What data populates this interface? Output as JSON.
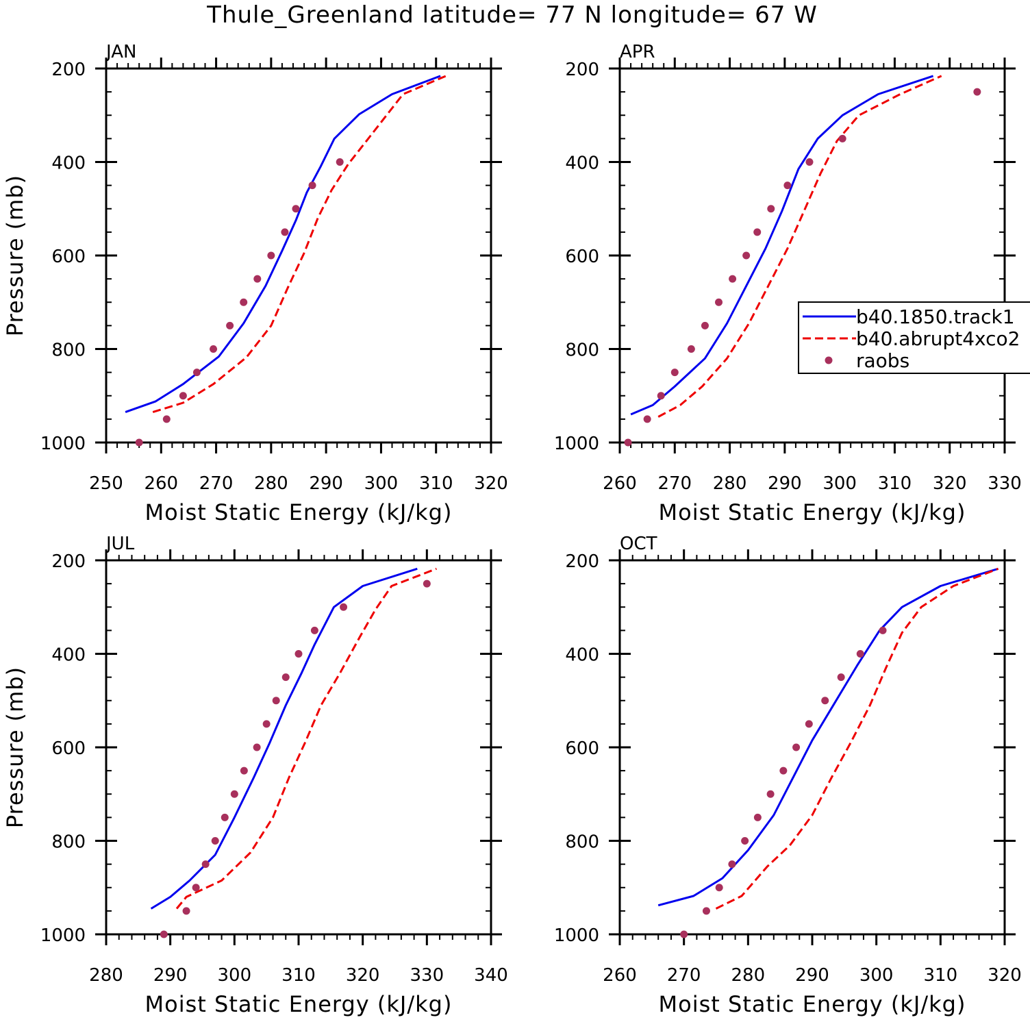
{
  "title": "Thule_Greenland  latitude= 77 N longitude= 67 W",
  "colors": {
    "model_a": "#0000ee",
    "model_b": "#ee0000",
    "raobs": "#a8305c"
  },
  "chart_data": [
    {
      "type": "line",
      "panel": "JAN",
      "xlabel": "Moist Static Energy (kJ/kg)",
      "ylabel": "Pressure (mb)",
      "xlim": [
        250,
        320
      ],
      "ylim": [
        200,
        1000
      ],
      "y_inverted": true,
      "xticks": [
        250,
        260,
        270,
        280,
        290,
        300,
        310,
        320
      ],
      "yticks": [
        200,
        400,
        600,
        800,
        1000
      ],
      "series": [
        {
          "name": "b40.1850.track1",
          "style": "solid",
          "x": [
            253.5,
            259,
            264,
            270.5,
            275,
            279,
            282,
            284.5,
            286.5,
            289,
            291.5,
            296,
            302,
            310.8
          ],
          "y": [
            935,
            912,
            875,
            816,
            745,
            665,
            590,
            525,
            465,
            410,
            350,
            298,
            255,
            216
          ]
        },
        {
          "name": "b40.abrupt4xco2",
          "style": "dashed",
          "x": [
            258.5,
            264,
            269.5,
            275.5,
            280,
            283,
            286,
            288.5,
            291,
            294,
            298,
            304,
            311.8
          ],
          "y": [
            935,
            915,
            875,
            818,
            750,
            670,
            595,
            520,
            460,
            405,
            345,
            255,
            216
          ]
        },
        {
          "name": "raobs",
          "style": "markers",
          "x": [
            256,
            261,
            264,
            266.5,
            269.5,
            272.5,
            275,
            277.5,
            280,
            282.5,
            284.5,
            287.5,
            292.5
          ],
          "y": [
            1000,
            950,
            900,
            850,
            800,
            750,
            700,
            650,
            600,
            550,
            500,
            450,
            400
          ]
        }
      ]
    },
    {
      "type": "line",
      "panel": "APR",
      "xlabel": "Moist Static Energy (kJ/kg)",
      "ylabel": "",
      "xlim": [
        260,
        330
      ],
      "ylim": [
        200,
        1000
      ],
      "y_inverted": true,
      "xticks": [
        260,
        270,
        280,
        290,
        300,
        310,
        320,
        330
      ],
      "yticks": [
        200,
        400,
        600,
        800,
        1000
      ],
      "series": [
        {
          "name": "b40.1850.track1",
          "style": "solid",
          "x": [
            262,
            266,
            270,
            275.5,
            279.5,
            283,
            286.5,
            289.5,
            292.5,
            296,
            300.5,
            307,
            317
          ],
          "y": [
            940,
            920,
            880,
            820,
            745,
            665,
            585,
            505,
            415,
            350,
            300,
            255,
            216
          ]
        },
        {
          "name": "b40.abrupt4xco2",
          "style": "dashed",
          "x": [
            267,
            271,
            275,
            279.5,
            283.5,
            287,
            290.5,
            293.5,
            296.5,
            299.5,
            303.5,
            311,
            318.5
          ],
          "y": [
            945,
            920,
            880,
            820,
            745,
            665,
            585,
            505,
            425,
            355,
            300,
            255,
            216
          ]
        },
        {
          "name": "raobs",
          "style": "markers",
          "x": [
            261.5,
            265,
            267.5,
            270,
            273,
            275.5,
            278,
            280.5,
            283,
            285,
            287.5,
            290.5,
            294.5,
            300.5,
            325
          ],
          "y": [
            1000,
            950,
            900,
            850,
            800,
            750,
            700,
            650,
            600,
            550,
            500,
            450,
            400,
            350,
            250
          ]
        }
      ],
      "legend": {
        "placement": "right",
        "entries": [
          "b40.1850.track1",
          "b40.abrupt4xco2",
          "raobs"
        ]
      }
    },
    {
      "type": "line",
      "panel": "JUL",
      "xlabel": "Moist Static Energy (kJ/kg)",
      "ylabel": "Pressure (mb)",
      "xlim": [
        280,
        340
      ],
      "ylim": [
        200,
        1000
      ],
      "y_inverted": true,
      "xticks": [
        280,
        290,
        300,
        310,
        320,
        330,
        340
      ],
      "yticks": [
        200,
        400,
        600,
        800,
        1000
      ],
      "series": [
        {
          "name": "b40.1850.track1",
          "style": "solid",
          "x": [
            287,
            290,
            293,
            297,
            300,
            303,
            305.5,
            308,
            310.5,
            312.5,
            315.5,
            320,
            328.5
          ],
          "y": [
            945,
            920,
            885,
            830,
            750,
            665,
            590,
            510,
            440,
            380,
            300,
            255,
            218
          ]
        },
        {
          "name": "b40.abrupt4xco2",
          "style": "dashed",
          "x": [
            291,
            292.5,
            298,
            302.5,
            306,
            308.5,
            311,
            313.5,
            316.5,
            319.5,
            322,
            324.5,
            331.5
          ],
          "y": [
            945,
            920,
            885,
            825,
            750,
            665,
            590,
            510,
            440,
            365,
            305,
            255,
            218
          ]
        },
        {
          "name": "raobs",
          "style": "markers",
          "x": [
            289,
            292.5,
            294,
            295.5,
            297,
            298.5,
            300,
            301.5,
            303.5,
            305,
            306.5,
            308,
            310,
            312.5,
            317,
            330
          ],
          "y": [
            1000,
            950,
            900,
            850,
            800,
            750,
            700,
            650,
            600,
            550,
            500,
            450,
            400,
            350,
            300,
            250
          ]
        }
      ]
    },
    {
      "type": "line",
      "panel": "OCT",
      "xlabel": "Moist Static Energy (kJ/kg)",
      "ylabel": "",
      "xlim": [
        260,
        320
      ],
      "ylim": [
        200,
        1000
      ],
      "y_inverted": true,
      "xticks": [
        260,
        270,
        280,
        290,
        300,
        310,
        320
      ],
      "yticks": [
        200,
        400,
        600,
        800,
        1000
      ],
      "series": [
        {
          "name": "b40.1850.track1",
          "style": "solid",
          "x": [
            266,
            271.5,
            276,
            280,
            284,
            287,
            290,
            293.5,
            297,
            300.5,
            304,
            310,
            319
          ],
          "y": [
            938,
            918,
            880,
            820,
            745,
            665,
            585,
            505,
            425,
            350,
            300,
            255,
            218
          ]
        },
        {
          "name": "b40.abrupt4xco2",
          "style": "dashed",
          "x": [
            275,
            279,
            283,
            286.5,
            290,
            293,
            296,
            299,
            301.5,
            304,
            307,
            312,
            319
          ],
          "y": [
            945,
            918,
            855,
            810,
            745,
            665,
            590,
            510,
            430,
            355,
            300,
            255,
            218
          ]
        },
        {
          "name": "raobs",
          "style": "markers",
          "x": [
            270,
            273.5,
            275.5,
            277.5,
            279.5,
            281.5,
            283.5,
            285.5,
            287.5,
            289.5,
            292,
            294.5,
            297.5,
            301
          ],
          "y": [
            1000,
            950,
            900,
            850,
            800,
            750,
            700,
            650,
            600,
            550,
            500,
            450,
            400,
            350
          ]
        }
      ]
    }
  ]
}
